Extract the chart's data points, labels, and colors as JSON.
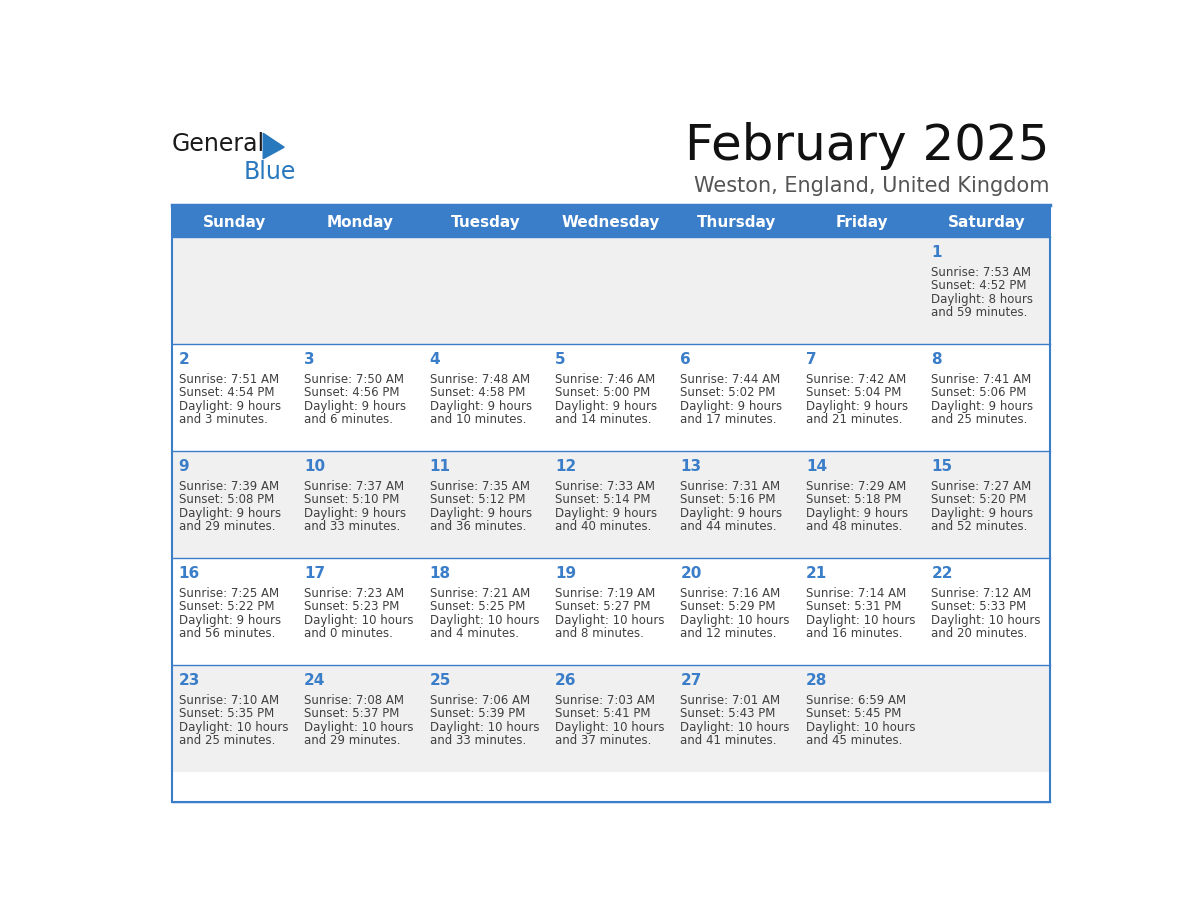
{
  "title": "February 2025",
  "subtitle": "Weston, England, United Kingdom",
  "header_bg": "#3A7DC9",
  "header_text_color": "#FFFFFF",
  "day_names": [
    "Sunday",
    "Monday",
    "Tuesday",
    "Wednesday",
    "Thursday",
    "Friday",
    "Saturday"
  ],
  "row_bg_odd": "#F0F0F0",
  "row_bg_even": "#FFFFFF",
  "cell_border_color": "#3A7DC9",
  "date_color": "#3A7DC9",
  "text_color": "#404040",
  "logo_general_color": "#1a1a1a",
  "logo_blue_color": "#2878BE",
  "days": [
    {
      "date": 1,
      "row": 0,
      "col": 6,
      "sunrise": "7:53 AM",
      "sunset": "4:52 PM",
      "daylight": "8 hours and 59 minutes."
    },
    {
      "date": 2,
      "row": 1,
      "col": 0,
      "sunrise": "7:51 AM",
      "sunset": "4:54 PM",
      "daylight": "9 hours and 3 minutes."
    },
    {
      "date": 3,
      "row": 1,
      "col": 1,
      "sunrise": "7:50 AM",
      "sunset": "4:56 PM",
      "daylight": "9 hours and 6 minutes."
    },
    {
      "date": 4,
      "row": 1,
      "col": 2,
      "sunrise": "7:48 AM",
      "sunset": "4:58 PM",
      "daylight": "9 hours and 10 minutes."
    },
    {
      "date": 5,
      "row": 1,
      "col": 3,
      "sunrise": "7:46 AM",
      "sunset": "5:00 PM",
      "daylight": "9 hours and 14 minutes."
    },
    {
      "date": 6,
      "row": 1,
      "col": 4,
      "sunrise": "7:44 AM",
      "sunset": "5:02 PM",
      "daylight": "9 hours and 17 minutes."
    },
    {
      "date": 7,
      "row": 1,
      "col": 5,
      "sunrise": "7:42 AM",
      "sunset": "5:04 PM",
      "daylight": "9 hours and 21 minutes."
    },
    {
      "date": 8,
      "row": 1,
      "col": 6,
      "sunrise": "7:41 AM",
      "sunset": "5:06 PM",
      "daylight": "9 hours and 25 minutes."
    },
    {
      "date": 9,
      "row": 2,
      "col": 0,
      "sunrise": "7:39 AM",
      "sunset": "5:08 PM",
      "daylight": "9 hours and 29 minutes."
    },
    {
      "date": 10,
      "row": 2,
      "col": 1,
      "sunrise": "7:37 AM",
      "sunset": "5:10 PM",
      "daylight": "9 hours and 33 minutes."
    },
    {
      "date": 11,
      "row": 2,
      "col": 2,
      "sunrise": "7:35 AM",
      "sunset": "5:12 PM",
      "daylight": "9 hours and 36 minutes."
    },
    {
      "date": 12,
      "row": 2,
      "col": 3,
      "sunrise": "7:33 AM",
      "sunset": "5:14 PM",
      "daylight": "9 hours and 40 minutes."
    },
    {
      "date": 13,
      "row": 2,
      "col": 4,
      "sunrise": "7:31 AM",
      "sunset": "5:16 PM",
      "daylight": "9 hours and 44 minutes."
    },
    {
      "date": 14,
      "row": 2,
      "col": 5,
      "sunrise": "7:29 AM",
      "sunset": "5:18 PM",
      "daylight": "9 hours and 48 minutes."
    },
    {
      "date": 15,
      "row": 2,
      "col": 6,
      "sunrise": "7:27 AM",
      "sunset": "5:20 PM",
      "daylight": "9 hours and 52 minutes."
    },
    {
      "date": 16,
      "row": 3,
      "col": 0,
      "sunrise": "7:25 AM",
      "sunset": "5:22 PM",
      "daylight": "9 hours and 56 minutes."
    },
    {
      "date": 17,
      "row": 3,
      "col": 1,
      "sunrise": "7:23 AM",
      "sunset": "5:23 PM",
      "daylight": "10 hours and 0 minutes."
    },
    {
      "date": 18,
      "row": 3,
      "col": 2,
      "sunrise": "7:21 AM",
      "sunset": "5:25 PM",
      "daylight": "10 hours and 4 minutes."
    },
    {
      "date": 19,
      "row": 3,
      "col": 3,
      "sunrise": "7:19 AM",
      "sunset": "5:27 PM",
      "daylight": "10 hours and 8 minutes."
    },
    {
      "date": 20,
      "row": 3,
      "col": 4,
      "sunrise": "7:16 AM",
      "sunset": "5:29 PM",
      "daylight": "10 hours and 12 minutes."
    },
    {
      "date": 21,
      "row": 3,
      "col": 5,
      "sunrise": "7:14 AM",
      "sunset": "5:31 PM",
      "daylight": "10 hours and 16 minutes."
    },
    {
      "date": 22,
      "row": 3,
      "col": 6,
      "sunrise": "7:12 AM",
      "sunset": "5:33 PM",
      "daylight": "10 hours and 20 minutes."
    },
    {
      "date": 23,
      "row": 4,
      "col": 0,
      "sunrise": "7:10 AM",
      "sunset": "5:35 PM",
      "daylight": "10 hours and 25 minutes."
    },
    {
      "date": 24,
      "row": 4,
      "col": 1,
      "sunrise": "7:08 AM",
      "sunset": "5:37 PM",
      "daylight": "10 hours and 29 minutes."
    },
    {
      "date": 25,
      "row": 4,
      "col": 2,
      "sunrise": "7:06 AM",
      "sunset": "5:39 PM",
      "daylight": "10 hours and 33 minutes."
    },
    {
      "date": 26,
      "row": 4,
      "col": 3,
      "sunrise": "7:03 AM",
      "sunset": "5:41 PM",
      "daylight": "10 hours and 37 minutes."
    },
    {
      "date": 27,
      "row": 4,
      "col": 4,
      "sunrise": "7:01 AM",
      "sunset": "5:43 PM",
      "daylight": "10 hours and 41 minutes."
    },
    {
      "date": 28,
      "row": 4,
      "col": 5,
      "sunrise": "6:59 AM",
      "sunset": "5:45 PM",
      "daylight": "10 hours and 45 minutes."
    }
  ]
}
